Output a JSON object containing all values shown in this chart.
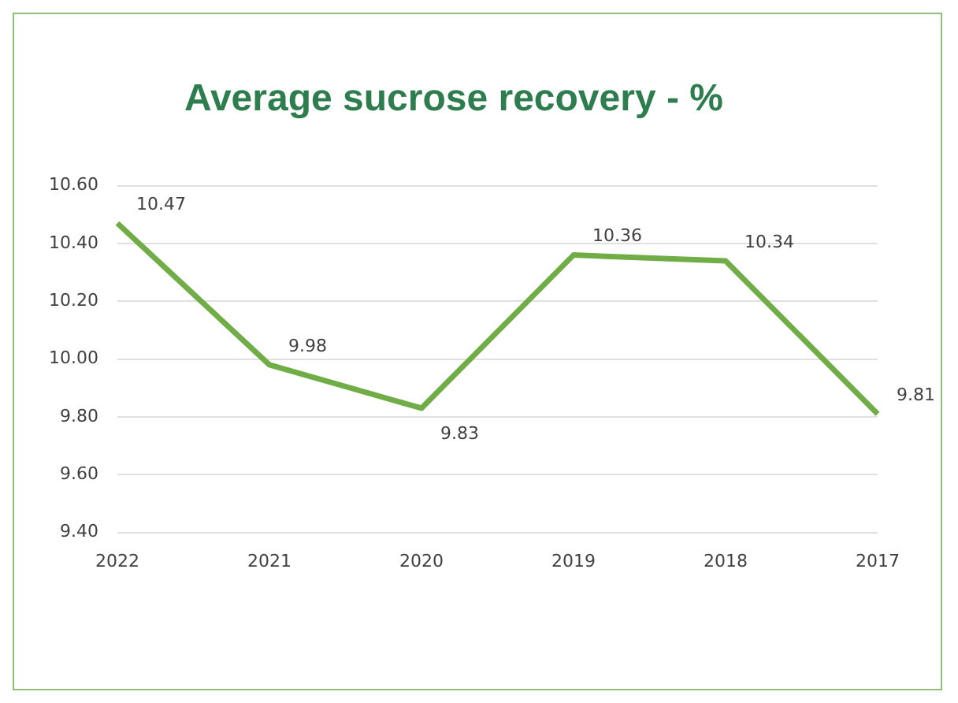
{
  "chart_data": {
    "type": "line",
    "title": "Average sucrose recovery - %",
    "categories": [
      "2022",
      "2021",
      "2020",
      "2019",
      "2018",
      "2017"
    ],
    "series": [
      {
        "color": "#70ad47",
        "values": [
          10.47,
          9.98,
          9.83,
          10.36,
          10.34,
          9.81
        ]
      }
    ],
    "ylim": [
      9.4,
      10.6
    ],
    "yticks": [
      {
        "value": 9.4,
        "label": "9.40"
      },
      {
        "value": 9.6,
        "label": "9.60"
      },
      {
        "value": 9.8,
        "label": "9.80"
      },
      {
        "value": 10,
        "label": "10.00"
      },
      {
        "value": 10.2,
        "label": "10.20"
      },
      {
        "value": 10.4,
        "label": "10.40"
      },
      {
        "value": 10.6,
        "label": "10.60"
      }
    ],
    "grid": "y",
    "data_labels": true,
    "legend": false,
    "marker": "none"
  }
}
